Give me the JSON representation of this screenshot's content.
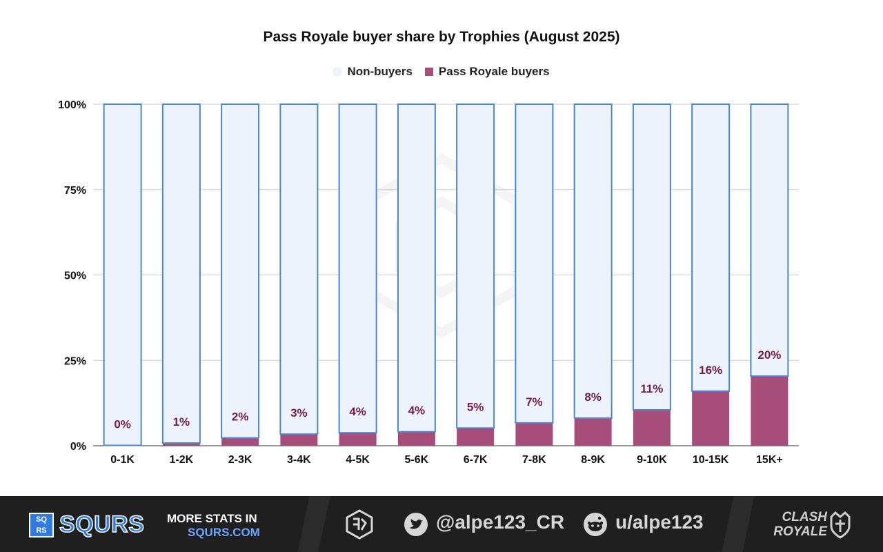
{
  "chart_data": {
    "type": "bar",
    "stacked": true,
    "title": "Pass Royale buyer share by Trophies  (August 2025)",
    "categories": [
      "0-1K",
      "1-2K",
      "2-3K",
      "3-4K",
      "4-5K",
      "5-6K",
      "6-7K",
      "7-8K",
      "8-9K",
      "9-10K",
      "10-15K",
      "15K+"
    ],
    "series": [
      {
        "name": "Non-buyers",
        "values": [
          99.9,
          99.2,
          97.7,
          96.6,
          96.2,
          95.9,
          94.8,
          93.3,
          91.9,
          89.5,
          84.0,
          79.6
        ]
      },
      {
        "name": "Pass Royale buyers",
        "values": [
          0.1,
          0.8,
          2.3,
          3.4,
          3.8,
          4.1,
          5.2,
          6.7,
          8.1,
          10.5,
          16.0,
          20.4
        ]
      }
    ],
    "data_labels": [
      "0%",
      "1%",
      "2%",
      "3%",
      "4%",
      "4%",
      "5%",
      "7%",
      "8%",
      "11%",
      "16%",
      "20%"
    ],
    "y_ticks": [
      "0%",
      "25%",
      "50%",
      "75%",
      "100%"
    ],
    "ylim": [
      0,
      100
    ],
    "grid": true,
    "legend_position": "top-center",
    "colors": {
      "non_buyers_fill": "#eef4fd",
      "non_buyers_stroke": "#4a86d8",
      "buyers_fill": "#a64d79",
      "label_color": "#741b47"
    }
  },
  "footer": {
    "brand": "SQURS",
    "brand_box_letters": [
      "SQ",
      "RS"
    ],
    "more_stats_line1": "MORE STATS IN",
    "more_stats_line2": "SQURS.COM",
    "twitter_handle": "@alpe123_CR",
    "reddit_handle": "u/alpe123",
    "game_logo": "CLASH ROYALE",
    "icons": [
      "squrs-logo-icon",
      "monogram-icon",
      "twitter-icon",
      "reddit-icon",
      "clash-royale-logo-icon"
    ]
  }
}
